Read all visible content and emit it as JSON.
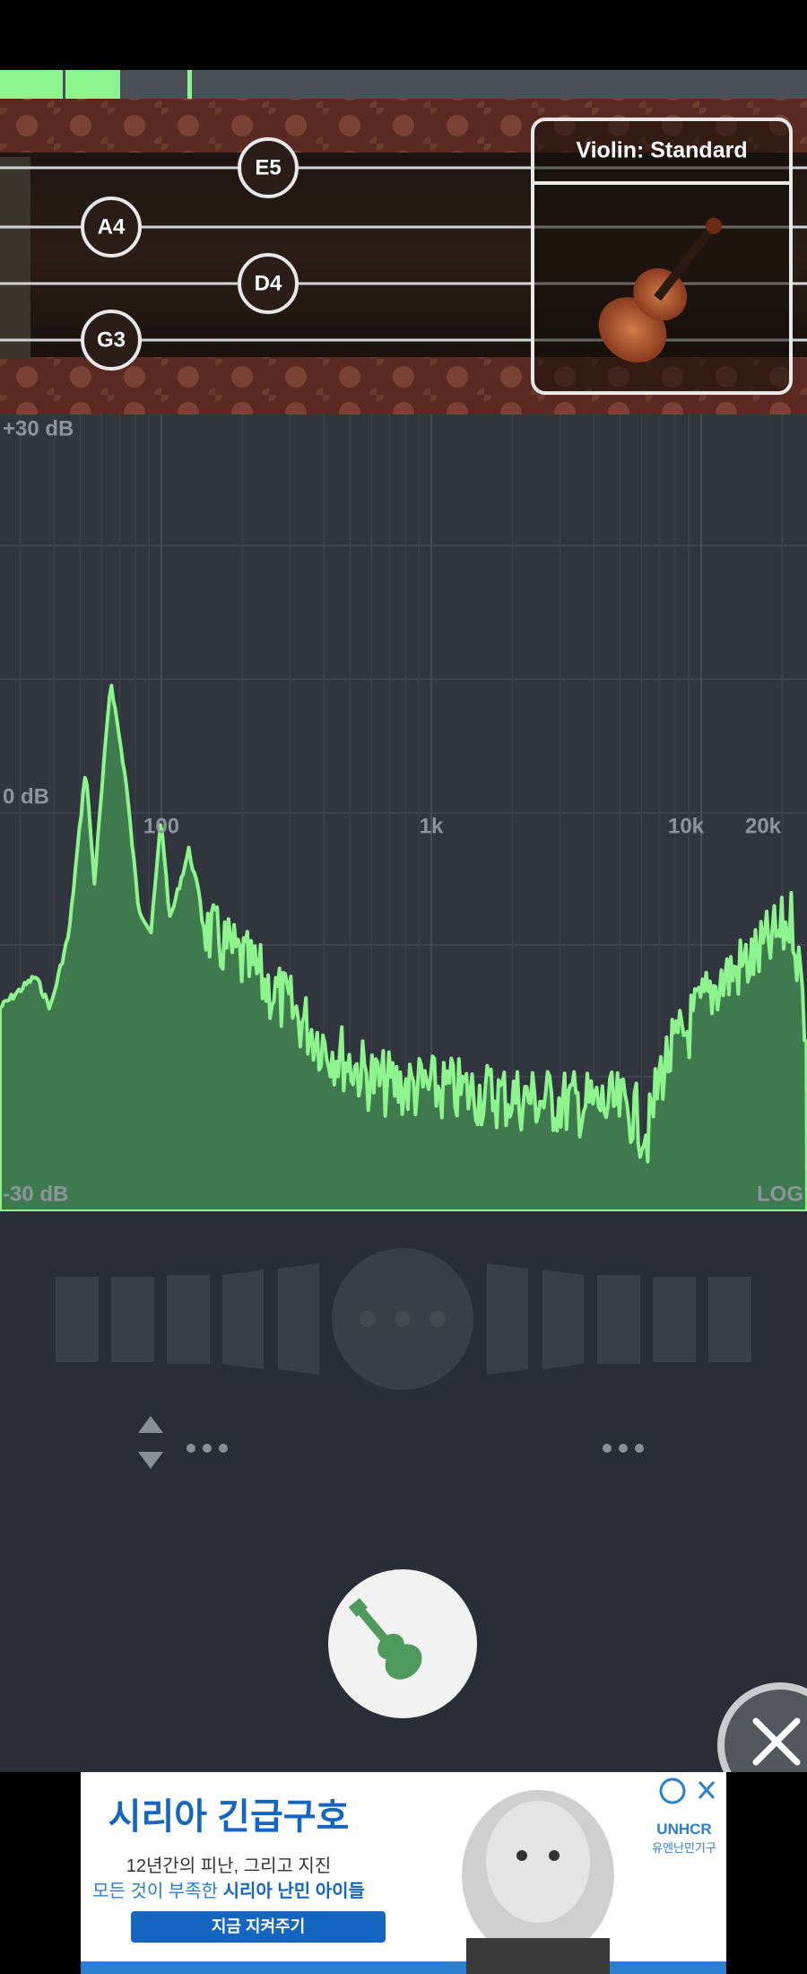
{
  "tuner": {
    "strings": [
      "E5",
      "A4",
      "D4",
      "G3"
    ],
    "instrument": "Violin: Standard"
  },
  "spectrum": {
    "db_labels": [
      "+30 dB",
      "0 dB",
      "-30 dB"
    ],
    "freq_labels": [
      "100",
      "1k",
      "10k",
      "20k"
    ],
    "scale": "LOG"
  },
  "ad": {
    "headline": "시리아 긴급구호",
    "line1": "12년간의 피난, 그리고 지진",
    "line2_prefix": "모든 것이 부족한 ",
    "line2_highlight": "시리아 난민 아이들",
    "button": "지금 지켜주기",
    "brand": "UNHCR",
    "brand_sub": "유엔난민기구"
  }
}
